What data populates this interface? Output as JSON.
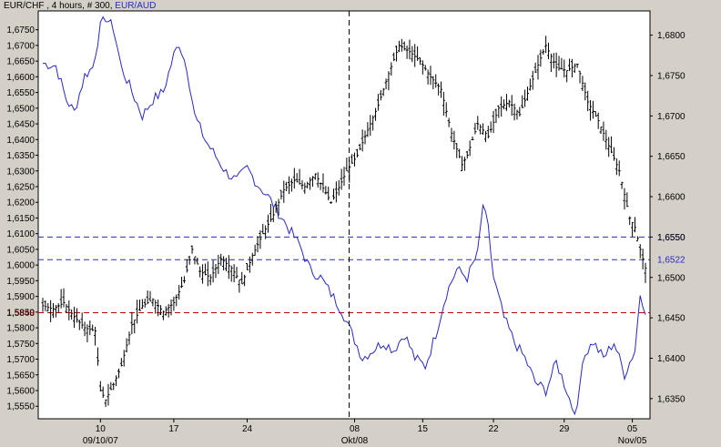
{
  "chart_data": {
    "type": "line",
    "title_main": "EUR/CHF",
    "title_params": ", 4 hours, # 300,",
    "title_overlay": "EUR/AUD",
    "primary_series": {
      "name": "EUR/CHF",
      "style": "ohlc-bars",
      "color": "#000000"
    },
    "overlay_series": {
      "name": "EUR/AUD",
      "style": "line",
      "color": "#2828c8"
    },
    "left_axis": {
      "ylim": [
        1.551,
        1.681
      ],
      "ticks": [
        "1,5550",
        "1,5600",
        "1,5650",
        "1,5700",
        "1,5750",
        "1,5800",
        "1,5850",
        "1,5900",
        "1,5950",
        "1,6000",
        "1,6050",
        "1,6100",
        "1,6150",
        "1,6200",
        "1,6250",
        "1,6300",
        "1,6350",
        "1,6400",
        "1,6450",
        "1,6500",
        "1,6550",
        "1,6600",
        "1,6650",
        "1,6700",
        "1,6750"
      ]
    },
    "right_axis": {
      "ylim": [
        1.6325,
        1.683
      ],
      "ticks": [
        "1,6350",
        "1,6400",
        "1,6450",
        "1,6500",
        "1,6550",
        "1,6600",
        "1,6650",
        "1,6700",
        "1,6750",
        "1,6800"
      ]
    },
    "x_axis": {
      "ticks": [
        {
          "label": "10",
          "sublabel": "09/10/07",
          "date": "2007-10-10"
        },
        {
          "label": "17",
          "sublabel": "",
          "date": "2007-10-17"
        },
        {
          "label": "24",
          "sublabel": "",
          "date": "2007-10-24"
        },
        {
          "label": "08",
          "sublabel": "Okt/08",
          "date": "2008-10-08"
        },
        {
          "label": "15",
          "sublabel": "",
          "date": "2008-10-15"
        },
        {
          "label": "22",
          "sublabel": "",
          "date": "2008-10-22"
        },
        {
          "label": "29",
          "sublabel": "",
          "date": "2008-10-29"
        },
        {
          "label": "05",
          "sublabel": "Nov/05",
          "date": "2008-11-05"
        }
      ],
      "separator_at_tick": "08"
    },
    "horizontal_lines": [
      {
        "axis": "left",
        "value": 1.5848,
        "label": "1,5848",
        "color": "#c00000",
        "label_color": "#c00000"
      },
      {
        "axis": "right",
        "value": 1.655,
        "label": "1,6550",
        "color": "#2828c8",
        "label_color": "#2828c8"
      },
      {
        "axis": "right",
        "value": 1.6522,
        "label": "1,6522",
        "color": "#2828c8",
        "label_color": "#2828c8"
      }
    ],
    "primary_keypoints": [
      [
        0,
        1.587
      ],
      [
        4,
        1.586
      ],
      [
        8,
        1.588
      ],
      [
        12,
        1.5835
      ],
      [
        16,
        1.58
      ],
      [
        20,
        1.579
      ],
      [
        22,
        1.56
      ],
      [
        24,
        1.557
      ],
      [
        27,
        1.562
      ],
      [
        30,
        1.568
      ],
      [
        34,
        1.581
      ],
      [
        38,
        1.587
      ],
      [
        42,
        1.589
      ],
      [
        46,
        1.585
      ],
      [
        50,
        1.588
      ],
      [
        54,
        1.595
      ],
      [
        57,
        1.605
      ],
      [
        60,
        1.598
      ],
      [
        64,
        1.596
      ],
      [
        68,
        1.602
      ],
      [
        72,
        1.599
      ],
      [
        76,
        1.594
      ],
      [
        80,
        1.603
      ],
      [
        84,
        1.61
      ],
      [
        88,
        1.616
      ],
      [
        92,
        1.624
      ],
      [
        96,
        1.627
      ],
      [
        100,
        1.625
      ],
      [
        104,
        1.629
      ],
      [
        108,
        1.623
      ],
      [
        110,
        1.62
      ],
      [
        112,
        1.623
      ],
      [
        116,
        1.63
      ],
      [
        120,
        1.635
      ],
      [
        124,
        1.643
      ],
      [
        128,
        1.651
      ],
      [
        132,
        1.661
      ],
      [
        136,
        1.67
      ],
      [
        140,
        1.668
      ],
      [
        144,
        1.665
      ],
      [
        148,
        1.66
      ],
      [
        152,
        1.656
      ],
      [
        156,
        1.642
      ],
      [
        160,
        1.632
      ],
      [
        162,
        1.635
      ],
      [
        166,
        1.645
      ],
      [
        170,
        1.641
      ],
      [
        174,
        1.65
      ],
      [
        178,
        1.652
      ],
      [
        182,
        1.648
      ],
      [
        186,
        1.657
      ],
      [
        190,
        1.666
      ],
      [
        192,
        1.67
      ],
      [
        196,
        1.663
      ],
      [
        200,
        1.662
      ],
      [
        204,
        1.664
      ],
      [
        208,
        1.652
      ],
      [
        212,
        1.646
      ],
      [
        216,
        1.638
      ],
      [
        220,
        1.63
      ],
      [
        224,
        1.615
      ],
      [
        226,
        1.612
      ],
      [
        228,
        1.605
      ],
      [
        230,
        1.599
      ]
    ],
    "overlay_keypoints": [
      [
        0,
        1.6765
      ],
      [
        5,
        1.6762
      ],
      [
        9,
        1.672
      ],
      [
        12,
        1.6705
      ],
      [
        16,
        1.675
      ],
      [
        19,
        1.676
      ],
      [
        22,
        1.681
      ],
      [
        24,
        1.6822
      ],
      [
        27,
        1.6808
      ],
      [
        30,
        1.676
      ],
      [
        34,
        1.673
      ],
      [
        38,
        1.67
      ],
      [
        42,
        1.672
      ],
      [
        46,
        1.673
      ],
      [
        50,
        1.6775
      ],
      [
        52,
        1.679
      ],
      [
        55,
        1.676
      ],
      [
        58,
        1.67
      ],
      [
        62,
        1.667
      ],
      [
        66,
        1.665
      ],
      [
        70,
        1.663
      ],
      [
        74,
        1.662
      ],
      [
        78,
        1.6635
      ],
      [
        82,
        1.6615
      ],
      [
        86,
        1.66
      ],
      [
        90,
        1.658
      ],
      [
        94,
        1.656
      ],
      [
        98,
        1.654
      ],
      [
        102,
        1.651
      ],
      [
        106,
        1.65
      ],
      [
        110,
        1.648
      ],
      [
        114,
        1.646
      ],
      [
        118,
        1.643
      ],
      [
        122,
        1.64
      ],
      [
        126,
        1.641
      ],
      [
        130,
        1.642
      ],
      [
        134,
        1.641
      ],
      [
        138,
        1.643
      ],
      [
        142,
        1.64
      ],
      [
        146,
        1.639
      ],
      [
        150,
        1.643
      ],
      [
        154,
        1.648
      ],
      [
        158,
        1.651
      ],
      [
        162,
        1.65
      ],
      [
        166,
        1.653
      ],
      [
        168,
        1.659
      ],
      [
        170,
        1.656
      ],
      [
        172,
        1.65
      ],
      [
        176,
        1.645
      ],
      [
        180,
        1.642
      ],
      [
        184,
        1.64
      ],
      [
        188,
        1.637
      ],
      [
        192,
        1.636
      ],
      [
        196,
        1.6395
      ],
      [
        200,
        1.636
      ],
      [
        202,
        1.634
      ],
      [
        204,
        1.6335
      ],
      [
        206,
        1.64
      ],
      [
        210,
        1.642
      ],
      [
        214,
        1.64
      ],
      [
        218,
        1.642
      ],
      [
        222,
        1.638
      ],
      [
        226,
        1.641
      ],
      [
        228,
        1.648
      ],
      [
        230,
        1.646
      ]
    ],
    "bar_count": 231,
    "grid": false,
    "background": "#ffffff",
    "frame_background": "#d4d0c8"
  }
}
